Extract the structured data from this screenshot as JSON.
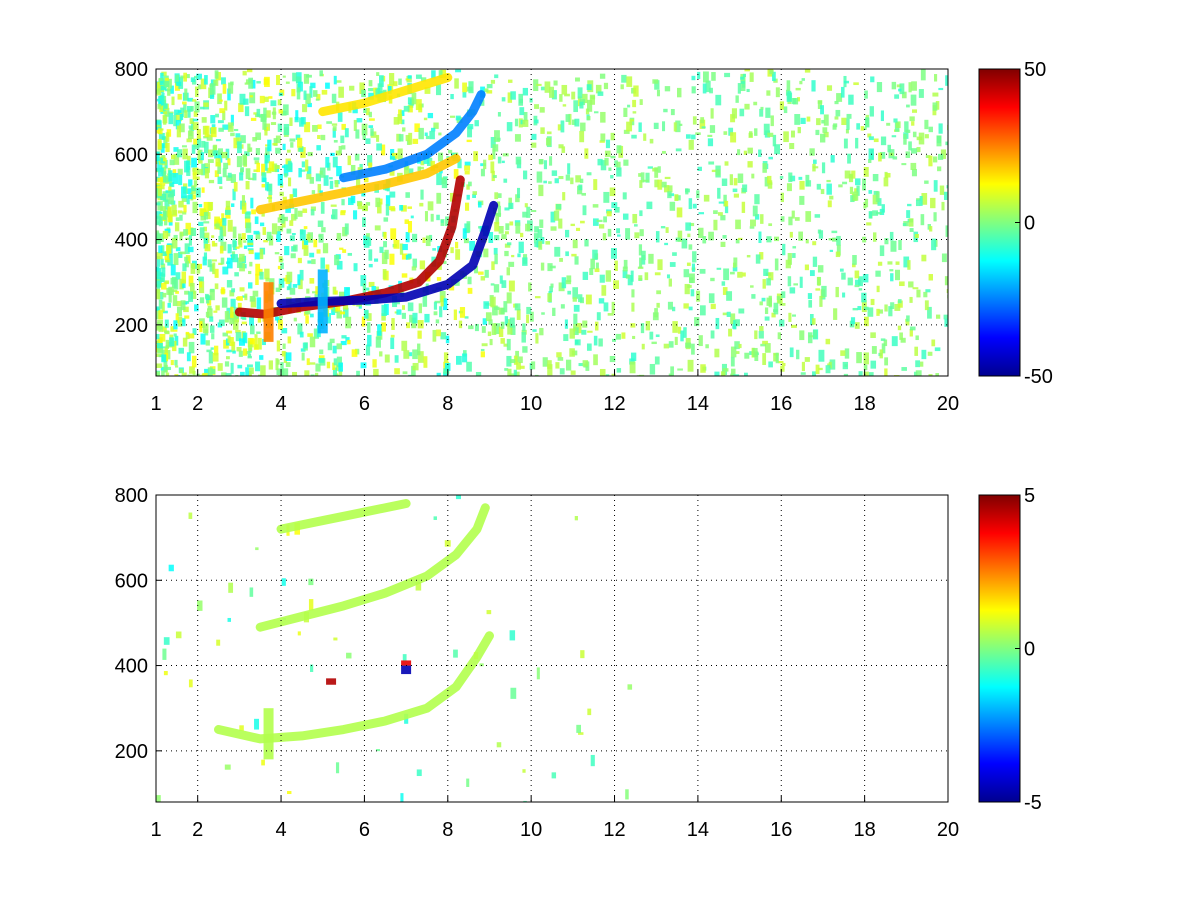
{
  "chart_data": [
    {
      "type": "heatmap",
      "title": "",
      "xlabel": "",
      "ylabel": "",
      "xlim": [
        1,
        20
      ],
      "ylim": [
        80,
        800
      ],
      "xticks": [
        1,
        2,
        4,
        6,
        8,
        10,
        12,
        14,
        16,
        18,
        20
      ],
      "yticks": [
        200,
        400,
        600,
        800
      ],
      "grid": true,
      "colorbar": {
        "min": -50,
        "max": 50,
        "ticks": [
          50,
          0,
          -50
        ],
        "colormap": "jet"
      },
      "features": [
        {
          "shape": "curve",
          "value": 45,
          "points": [
            [
              3.0,
              230
            ],
            [
              3.6,
              225
            ],
            [
              4.5,
              242
            ],
            [
              5.5,
              255
            ],
            [
              6.5,
              275
            ],
            [
              7.3,
              300
            ],
            [
              7.8,
              350
            ],
            [
              8.1,
              430
            ],
            [
              8.3,
              540
            ]
          ]
        },
        {
          "shape": "curve",
          "value": -45,
          "points": [
            [
              4.0,
              250
            ],
            [
              5.0,
              255
            ],
            [
              6.0,
              258
            ],
            [
              7.0,
              265
            ],
            [
              8.0,
              295
            ],
            [
              8.6,
              340
            ],
            [
              8.9,
              420
            ],
            [
              9.1,
              480
            ]
          ]
        },
        {
          "shape": "curve",
          "value": -25,
          "points": [
            [
              5.5,
              545
            ],
            [
              6.5,
              565
            ],
            [
              7.5,
              600
            ],
            [
              8.2,
              650
            ],
            [
              8.6,
              700
            ],
            [
              8.8,
              740
            ]
          ]
        },
        {
          "shape": "curve",
          "value": 18,
          "points": [
            [
              3.5,
              470
            ],
            [
              4.5,
              490
            ],
            [
              5.5,
              510
            ],
            [
              6.5,
              530
            ],
            [
              7.5,
              555
            ],
            [
              8.2,
              590
            ]
          ]
        },
        {
          "shape": "curve",
          "value": 15,
          "points": [
            [
              5.0,
              700
            ],
            [
              6.0,
              720
            ],
            [
              7.0,
              750
            ],
            [
              8.0,
              780
            ]
          ]
        },
        {
          "shape": "band",
          "value": 25,
          "x": 3.7,
          "y": [
            160,
            300
          ]
        },
        {
          "shape": "band",
          "value": -20,
          "x": 5.0,
          "y": [
            180,
            330
          ]
        }
      ]
    },
    {
      "type": "heatmap",
      "title": "",
      "xlabel": "",
      "ylabel": "",
      "xlim": [
        1,
        20
      ],
      "ylim": [
        80,
        800
      ],
      "xticks": [
        1,
        2,
        4,
        6,
        8,
        10,
        12,
        14,
        16,
        18,
        20
      ],
      "yticks": [
        200,
        400,
        600,
        800
      ],
      "grid": true,
      "colorbar": {
        "min": -5,
        "max": 5,
        "ticks": [
          5,
          0,
          -5
        ],
        "colormap": "jet"
      },
      "features": [
        {
          "shape": "curve",
          "value": 0.5,
          "points": [
            [
              2.5,
              250
            ],
            [
              3.5,
              228
            ],
            [
              4.5,
              235
            ],
            [
              5.5,
              250
            ],
            [
              6.5,
              270
            ],
            [
              7.5,
              300
            ],
            [
              8.2,
              350
            ],
            [
              8.7,
              420
            ],
            [
              9.0,
              470
            ]
          ]
        },
        {
          "shape": "curve",
          "value": 0.5,
          "points": [
            [
              3.5,
              490
            ],
            [
              4.5,
              515
            ],
            [
              5.5,
              540
            ],
            [
              6.5,
              570
            ],
            [
              7.5,
              610
            ],
            [
              8.2,
              660
            ],
            [
              8.7,
              720
            ],
            [
              8.9,
              770
            ]
          ]
        },
        {
          "shape": "curve",
          "value": 0.5,
          "points": [
            [
              4.0,
              720
            ],
            [
              5.0,
              740
            ],
            [
              6.0,
              760
            ],
            [
              7.0,
              780
            ]
          ]
        },
        {
          "shape": "band",
          "value": 0.5,
          "x": 3.7,
          "y": [
            180,
            300
          ]
        },
        {
          "shape": "band",
          "value": 4.5,
          "x": 5.2,
          "y": [
            355,
            370
          ]
        },
        {
          "shape": "band",
          "value": -4.5,
          "x": 7.0,
          "y": [
            380,
            400
          ]
        },
        {
          "shape": "band",
          "value": 4,
          "x": 7.0,
          "y": [
            400,
            412
          ]
        }
      ]
    }
  ]
}
